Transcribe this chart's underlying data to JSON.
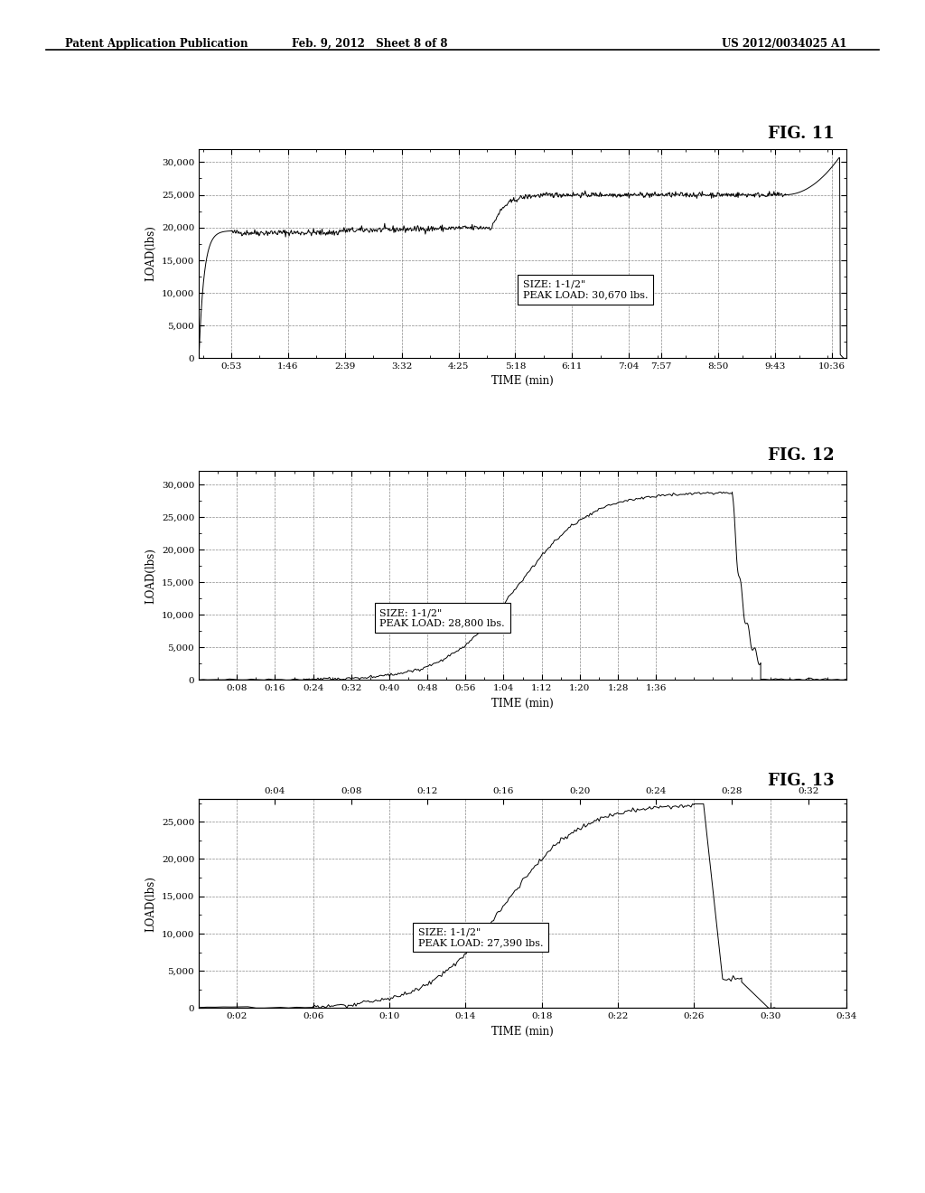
{
  "header_left": "Patent Application Publication",
  "header_center": "Feb. 9, 2012   Sheet 8 of 8",
  "header_right": "US 2012/0034025 A1",
  "fig11": {
    "title": "FIG. 11",
    "xlabel": "TIME (min)",
    "ylabel": "LOAD(lbs)",
    "yticks": [
      0,
      5000,
      10000,
      15000,
      20000,
      25000,
      30000
    ],
    "xtick_labels": [
      "0:53",
      "1:46",
      "2:39",
      "3:32",
      "4:25",
      "5:18",
      "6:11",
      "7:04",
      "7:57",
      "8:50",
      "9:43",
      "10:36"
    ],
    "annotation_line1": "SIZE: 1-1/2\"",
    "annotation_line2": "PEAK LOAD: 30,670 lbs.",
    "ylim": [
      0,
      32000
    ]
  },
  "fig12": {
    "title": "FIG. 12",
    "xlabel": "TIME (min)",
    "ylabel": "LOAD(lbs)",
    "yticks": [
      0,
      5000,
      10000,
      15000,
      20000,
      25000,
      30000
    ],
    "xtick_labels": [
      "0:08",
      "0:16",
      "0:24",
      "0:32",
      "0:40",
      "0:48",
      "0:56",
      "1:04",
      "1:12",
      "1:20",
      "1:28",
      "1:36"
    ],
    "annotation_line1": "SIZE: 1-1/2\"",
    "annotation_line2": "PEAK LOAD: 28,800 lbs.",
    "ylim": [
      0,
      32000
    ]
  },
  "fig13": {
    "title": "FIG. 13",
    "xlabel": "TIME (min)",
    "ylabel": "LOAD(lbs)",
    "yticks": [
      0,
      5000,
      10000,
      15000,
      20000,
      25000
    ],
    "xtick_labels_bottom": [
      "0:02",
      "0:06",
      "0:10",
      "0:14",
      "0:18",
      "0:22",
      "0:26",
      "0:30",
      "0:34"
    ],
    "xtick_labels_top": [
      "0:04",
      "0:08",
      "0:12",
      "0:16",
      "0:20",
      "0:24",
      "0:28",
      "0:32"
    ],
    "annotation_line1": "SIZE: 1-1/2\"",
    "annotation_line2": "PEAK LOAD: 27,390 lbs.",
    "ylim": [
      0,
      28000
    ]
  },
  "bg_color": "#ffffff",
  "line_color": "#000000"
}
